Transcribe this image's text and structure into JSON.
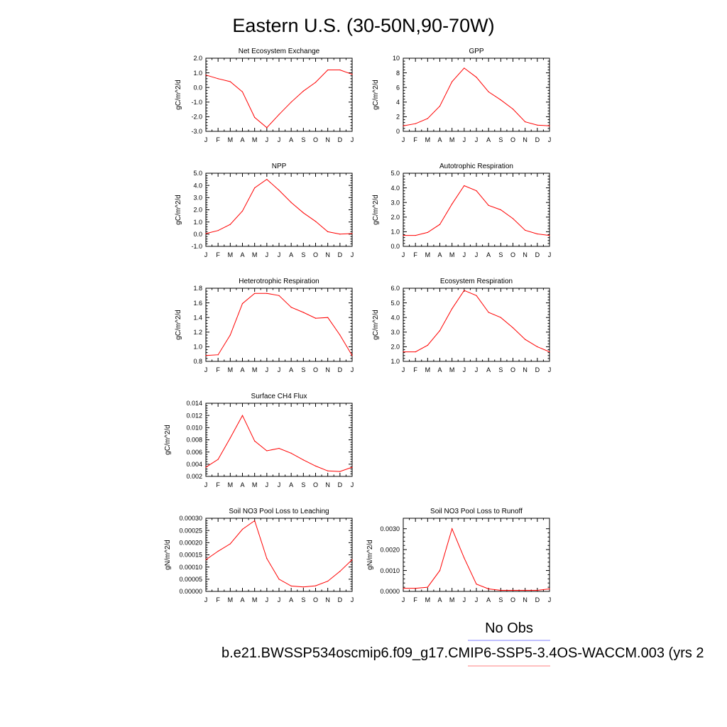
{
  "title": "Eastern U.S. (30-50N,90-70W)",
  "legend": {
    "label": "No Obs",
    "caption": "b.e21.BWSSP534oscmip6.f09_g17.CMIP6-SSP5-3.4OS-WACCM.003 (yrs 2",
    "colors": {
      "obs_line": "#8080ff",
      "case_line": "#ff8080"
    }
  },
  "series_color": "#ff0000",
  "chart_data": [
    {
      "type": "line",
      "title": "Net Ecosystem Exchange",
      "ylabel": "gC/m^2/d",
      "categories": [
        "J",
        "F",
        "M",
        "A",
        "M",
        "J",
        "J",
        "A",
        "S",
        "O",
        "N",
        "D",
        "J"
      ],
      "values": [
        0.85,
        0.6,
        0.4,
        -0.3,
        -2.05,
        -2.75,
        -1.85,
        -1.0,
        -0.25,
        0.35,
        1.2,
        1.2,
        0.9
      ],
      "ylim": [
        -3.0,
        2.0
      ],
      "yticks": [
        "-3.0",
        "-2.0",
        "-1.0",
        "0.0",
        "1.0",
        "2.0"
      ],
      "grid": false
    },
    {
      "type": "line",
      "title": "GPP",
      "ylabel": "gC/m^2/d",
      "categories": [
        "J",
        "F",
        "M",
        "A",
        "M",
        "J",
        "J",
        "A",
        "S",
        "O",
        "N",
        "D",
        "J"
      ],
      "values": [
        0.75,
        1.05,
        1.75,
        3.45,
        6.8,
        8.65,
        7.4,
        5.4,
        4.3,
        3.05,
        1.3,
        0.85,
        0.75
      ],
      "ylim": [
        0,
        10
      ],
      "yticks": [
        "0",
        "2",
        "4",
        "6",
        "8",
        "10"
      ],
      "grid": false
    },
    {
      "type": "line",
      "title": "NPP",
      "ylabel": "gC/m^2/d",
      "categories": [
        "J",
        "F",
        "M",
        "A",
        "M",
        "J",
        "J",
        "A",
        "S",
        "O",
        "N",
        "D",
        "J"
      ],
      "values": [
        0.05,
        0.3,
        0.8,
        1.9,
        3.8,
        4.5,
        3.6,
        2.6,
        1.75,
        1.05,
        0.2,
        0.0,
        0.05
      ],
      "ylim": [
        -1.0,
        5.0
      ],
      "yticks": [
        "-1.0",
        "0.0",
        "1.0",
        "2.0",
        "3.0",
        "4.0",
        "5.0"
      ],
      "grid": false
    },
    {
      "type": "line",
      "title": "Autotrophic Respiration",
      "ylabel": "gC/m^2/d",
      "categories": [
        "J",
        "F",
        "M",
        "A",
        "M",
        "J",
        "J",
        "A",
        "S",
        "O",
        "N",
        "D",
        "J"
      ],
      "values": [
        0.75,
        0.75,
        0.95,
        1.5,
        2.9,
        4.15,
        3.8,
        2.8,
        2.5,
        1.9,
        1.1,
        0.85,
        0.75
      ],
      "ylim": [
        0.0,
        5.0
      ],
      "yticks": [
        "0.0",
        "1.0",
        "2.0",
        "3.0",
        "4.0",
        "5.0"
      ],
      "grid": false
    },
    {
      "type": "line",
      "title": "Heterotrophic Respiration",
      "ylabel": "gC/m^2/d",
      "categories": [
        "J",
        "F",
        "M",
        "A",
        "M",
        "J",
        "J",
        "A",
        "S",
        "O",
        "N",
        "D",
        "J"
      ],
      "values": [
        0.88,
        0.89,
        1.16,
        1.59,
        1.73,
        1.73,
        1.7,
        1.54,
        1.47,
        1.39,
        1.4,
        1.16,
        0.88
      ],
      "ylim": [
        0.8,
        1.8
      ],
      "yticks": [
        "0.8",
        "1.0",
        "1.2",
        "1.4",
        "1.6",
        "1.8"
      ],
      "grid": false
    },
    {
      "type": "line",
      "title": "Ecosystem Respiration",
      "ylabel": "gC/m^2/d",
      "categories": [
        "J",
        "F",
        "M",
        "A",
        "M",
        "J",
        "J",
        "A",
        "S",
        "O",
        "N",
        "D",
        "J"
      ],
      "values": [
        1.65,
        1.65,
        2.1,
        3.1,
        4.6,
        5.85,
        5.5,
        4.35,
        4.0,
        3.3,
        2.5,
        2.0,
        1.65
      ],
      "ylim": [
        1.0,
        6.0
      ],
      "yticks": [
        "1.0",
        "2.0",
        "3.0",
        "4.0",
        "5.0",
        "6.0"
      ],
      "grid": false
    },
    {
      "type": "line",
      "title": "Surface CH4 Flux",
      "ylabel": "gC/m^2/d",
      "categories": [
        "J",
        "F",
        "M",
        "A",
        "M",
        "J",
        "J",
        "A",
        "S",
        "O",
        "N",
        "D",
        "J"
      ],
      "values": [
        0.0035,
        0.0048,
        0.0083,
        0.012,
        0.0078,
        0.0062,
        0.0066,
        0.0058,
        0.0047,
        0.0037,
        0.0029,
        0.0028,
        0.0035
      ],
      "ylim": [
        0.002,
        0.014
      ],
      "yticks": [
        "0.002",
        "0.004",
        "0.006",
        "0.008",
        "0.010",
        "0.012",
        "0.014"
      ],
      "grid": false
    },
    {
      "type": "line",
      "title": "Soil NO3 Pool Loss to Leaching",
      "ylabel": "gN/m^2/d",
      "categories": [
        "J",
        "F",
        "M",
        "A",
        "M",
        "J",
        "J",
        "A",
        "S",
        "O",
        "N",
        "D",
        "J"
      ],
      "values": [
        0.00013,
        0.000165,
        0.000195,
        0.000255,
        0.00029,
        0.000135,
        5e-05,
        2.2e-05,
        1.8e-05,
        2.3e-05,
        4.2e-05,
        8.2e-05,
        0.00013
      ],
      "ylim": [
        0,
        0.0003
      ],
      "yticks": [
        "0.00000",
        "0.00005",
        "0.00010",
        "0.00015",
        "0.00020",
        "0.00025",
        "0.00030"
      ],
      "grid": false
    },
    {
      "type": "line",
      "title": "Soil NO3 Pool Loss to Runoff",
      "ylabel": "gN/m^2/d",
      "categories": [
        "J",
        "F",
        "M",
        "A",
        "M",
        "J",
        "J",
        "A",
        "S",
        "O",
        "N",
        "D",
        "J"
      ],
      "values": [
        0.00015,
        0.00015,
        0.0002,
        0.001,
        0.003,
        0.0016,
        0.00035,
        0.00012,
        5e-05,
        5e-05,
        5e-05,
        5e-05,
        0.00012
      ],
      "ylim": [
        0,
        0.0035
      ],
      "yticks": [
        "0.0000",
        "0.0010",
        "0.0020",
        "0.0030"
      ],
      "ytick_values": [
        0,
        0.001,
        0.002,
        0.003
      ],
      "grid": false
    }
  ]
}
